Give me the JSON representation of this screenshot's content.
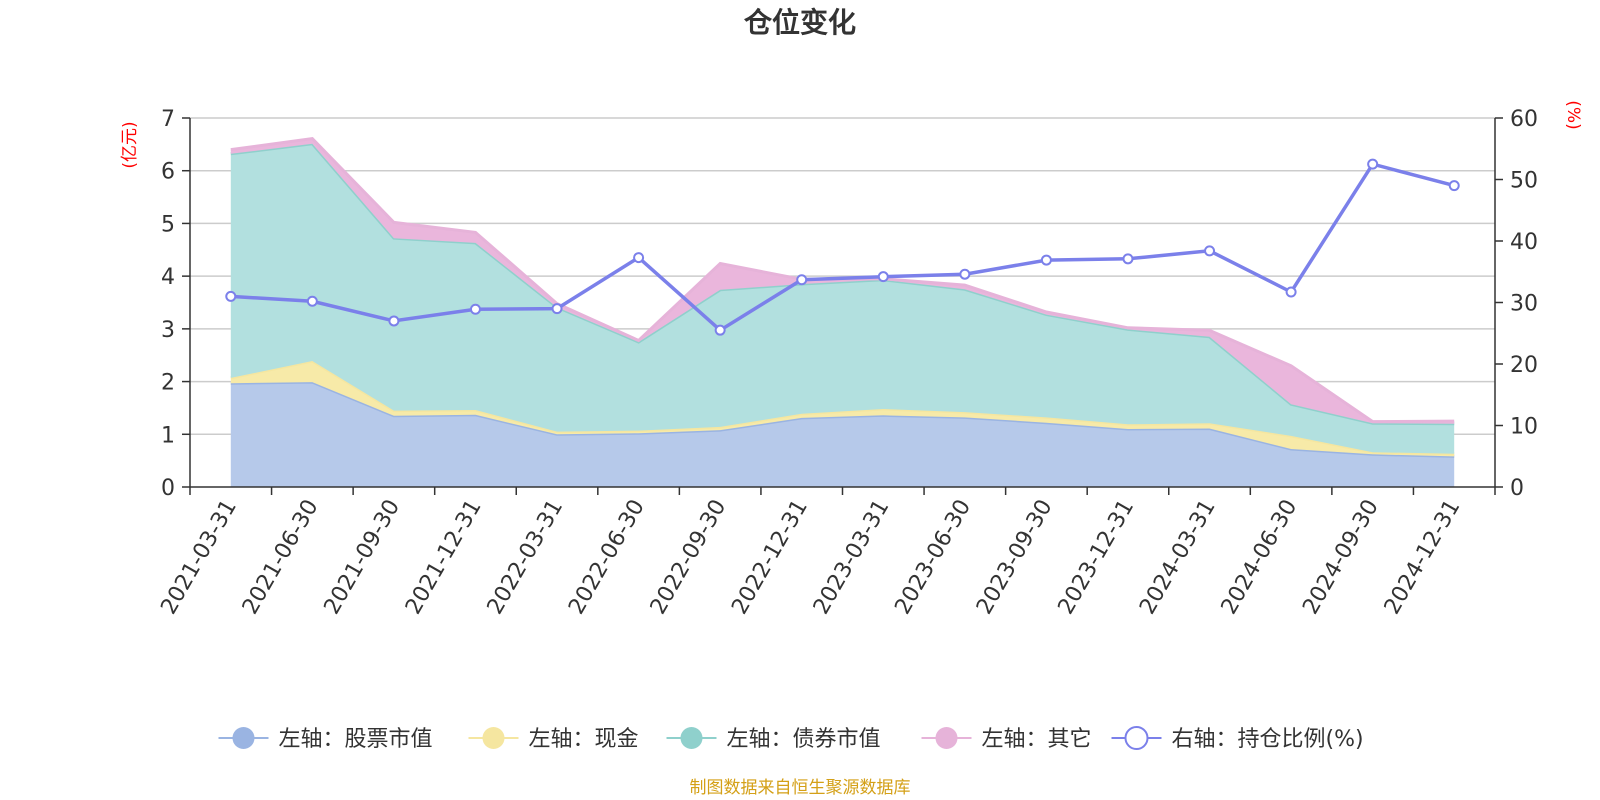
{
  "chart_data": {
    "type": "area",
    "title": "仓位变化",
    "left_unit": "(亿元)",
    "right_unit": "(%)",
    "categories": [
      "2021-03-31",
      "2021-06-30",
      "2021-09-30",
      "2021-12-31",
      "2022-03-31",
      "2022-06-30",
      "2022-09-30",
      "2022-12-31",
      "2023-03-31",
      "2023-06-30",
      "2023-09-30",
      "2023-12-31",
      "2024-03-31",
      "2024-06-30",
      "2024-09-30",
      "2024-12-31"
    ],
    "left_axis": {
      "min": 0,
      "max": 7,
      "ticks": [
        "0",
        "1",
        "2",
        "3",
        "4",
        "5",
        "6",
        "7"
      ]
    },
    "right_axis": {
      "min": 0,
      "max": 60,
      "ticks": [
        "0",
        "10",
        "20",
        "30",
        "40",
        "50",
        "60"
      ]
    },
    "stacked_series": [
      {
        "name": "左轴：股票市值",
        "color": "#9ab4e2",
        "fill": "#b6c9ea",
        "values": [
          1.97,
          1.99,
          1.35,
          1.37,
          1.0,
          1.02,
          1.08,
          1.31,
          1.36,
          1.32,
          1.22,
          1.1,
          1.11,
          0.72,
          0.62,
          0.58
        ]
      },
      {
        "name": "左轴：现金",
        "color": "#f5e6a0",
        "fill": "#f7eaa8",
        "values": [
          0.1,
          0.4,
          0.1,
          0.09,
          0.05,
          0.05,
          0.06,
          0.08,
          0.12,
          0.1,
          0.1,
          0.09,
          0.1,
          0.25,
          0.04,
          0.05
        ]
      },
      {
        "name": "左轴：债券市值",
        "color": "#8fd0cc",
        "fill": "#b2e0df",
        "values": [
          4.25,
          4.12,
          3.27,
          3.17,
          2.36,
          1.68,
          2.6,
          2.46,
          2.45,
          2.33,
          1.95,
          1.8,
          1.64,
          0.6,
          0.55,
          0.57
        ]
      },
      {
        "name": "左轴：其它",
        "color": "#e6b3d9",
        "fill": "#eab6dc",
        "values": [
          0.08,
          0.1,
          0.3,
          0.2,
          0.07,
          0.03,
          0.5,
          0.09,
          0.02,
          0.08,
          0.05,
          0.03,
          0.12,
          0.73,
          0.03,
          0.05
        ]
      }
    ],
    "line_series": {
      "name": "右轴：持仓比例(%)",
      "color": "#7b80ea",
      "values": [
        31.0,
        30.2,
        27.0,
        28.9,
        29.0,
        37.3,
        25.5,
        33.7,
        34.2,
        34.6,
        36.9,
        37.1,
        38.4,
        31.7,
        52.5,
        49.0
      ]
    },
    "legend_position": "bottom",
    "grid": true
  },
  "footer": {
    "source": "制图数据来自恒生聚源数据库"
  }
}
